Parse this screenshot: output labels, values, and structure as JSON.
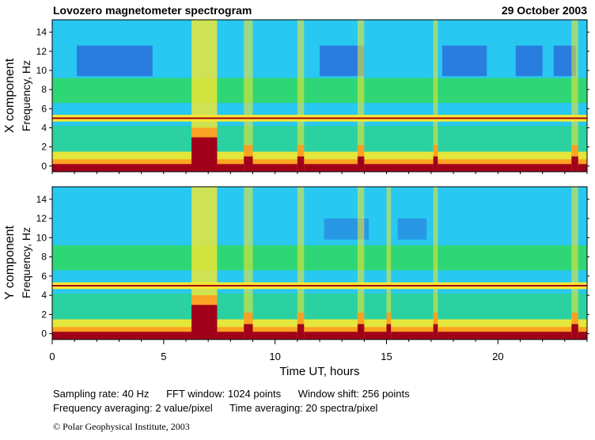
{
  "header": {
    "title": "Lovozero magnetometer spectrogram",
    "date": "29 October 2003"
  },
  "chart_data": [
    {
      "type": "heatmap",
      "component_label": "X component",
      "ylabel": "Frequency, Hz",
      "xlim": [
        0,
        24
      ],
      "ylim": [
        -0.6,
        15.3
      ],
      "y_ticks": [
        0,
        2,
        4,
        6,
        8,
        10,
        12,
        14
      ],
      "powerline_hz": 5.0,
      "background_blob_hz": 10.8,
      "bursts_ut": [
        {
          "start": 6.25,
          "end": 7.4,
          "label": "strong broadband burst"
        },
        {
          "start": 8.6,
          "end": 9.0,
          "label": "burst"
        },
        {
          "start": 11.0,
          "end": 11.3,
          "label": "burst"
        },
        {
          "start": 13.7,
          "end": 14.0,
          "label": "burst"
        },
        {
          "start": 17.1,
          "end": 17.3,
          "label": "burst"
        },
        {
          "start": 23.3,
          "end": 23.6,
          "label": "burst"
        }
      ]
    },
    {
      "type": "heatmap",
      "component_label": "Y component",
      "ylabel": "Frequency, Hz",
      "xlim": [
        0,
        24
      ],
      "ylim": [
        -0.6,
        15.3
      ],
      "y_ticks": [
        0,
        2,
        4,
        6,
        8,
        10,
        12,
        14
      ],
      "powerline_hz": 5.0,
      "band_hz": 8.0,
      "bursts_ut": [
        {
          "start": 6.25,
          "end": 7.4,
          "label": "strong broadband burst"
        },
        {
          "start": 8.6,
          "end": 9.0,
          "label": "burst"
        },
        {
          "start": 11.0,
          "end": 11.3,
          "label": "burst"
        },
        {
          "start": 13.7,
          "end": 14.0,
          "label": "burst"
        },
        {
          "start": 15.0,
          "end": 15.2,
          "label": "burst"
        },
        {
          "start": 17.1,
          "end": 17.3,
          "label": "burst"
        },
        {
          "start": 23.3,
          "end": 23.6,
          "label": "burst"
        }
      ]
    }
  ],
  "x_axis": {
    "label": "Time UT, hours",
    "ticks": [
      0,
      5,
      10,
      15,
      20
    ]
  },
  "params": {
    "line1": "Sampling rate: 40 Hz      FFT window: 1024 points      Window shift: 256 points",
    "line2": "Frequency averaging: 2 value/pixel      Time averaging: 20 spectra/pixel"
  },
  "footer": {
    "copyright": "© Polar Geophysical Institute, 2003"
  },
  "colors": {
    "quiet": "#28c8f0",
    "band_green": "#30d860",
    "yellow": "#f8e830",
    "orange": "#ff9a20",
    "dark_red": "#a0001a",
    "blue_blob": "#2840d0"
  }
}
